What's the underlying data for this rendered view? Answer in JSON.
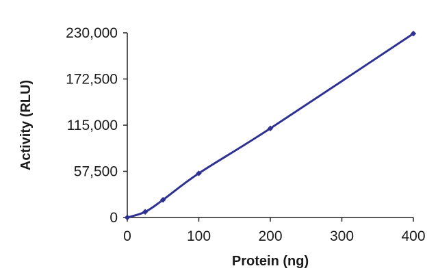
{
  "chart_data": {
    "type": "line",
    "title": "",
    "xlabel": "Protein (ng)",
    "ylabel": "Activity (RLU)",
    "xlim": [
      0,
      400
    ],
    "ylim": [
      0,
      230000
    ],
    "xticks": [
      0,
      100,
      200,
      300,
      400
    ],
    "xtick_labels": [
      "0",
      "100",
      "200",
      "300",
      "400"
    ],
    "yticks": [
      0,
      57500,
      115000,
      172500,
      230000
    ],
    "ytick_labels": [
      "0",
      "57,500",
      "115,000",
      "172,500",
      "230,000"
    ],
    "grid": false,
    "legend": "none",
    "series": [
      {
        "color": "#2e3192",
        "x": [
          0,
          25,
          50,
          100,
          200,
          400
        ],
        "y": [
          0,
          7000,
          22000,
          55000,
          111000,
          229000
        ]
      }
    ]
  }
}
